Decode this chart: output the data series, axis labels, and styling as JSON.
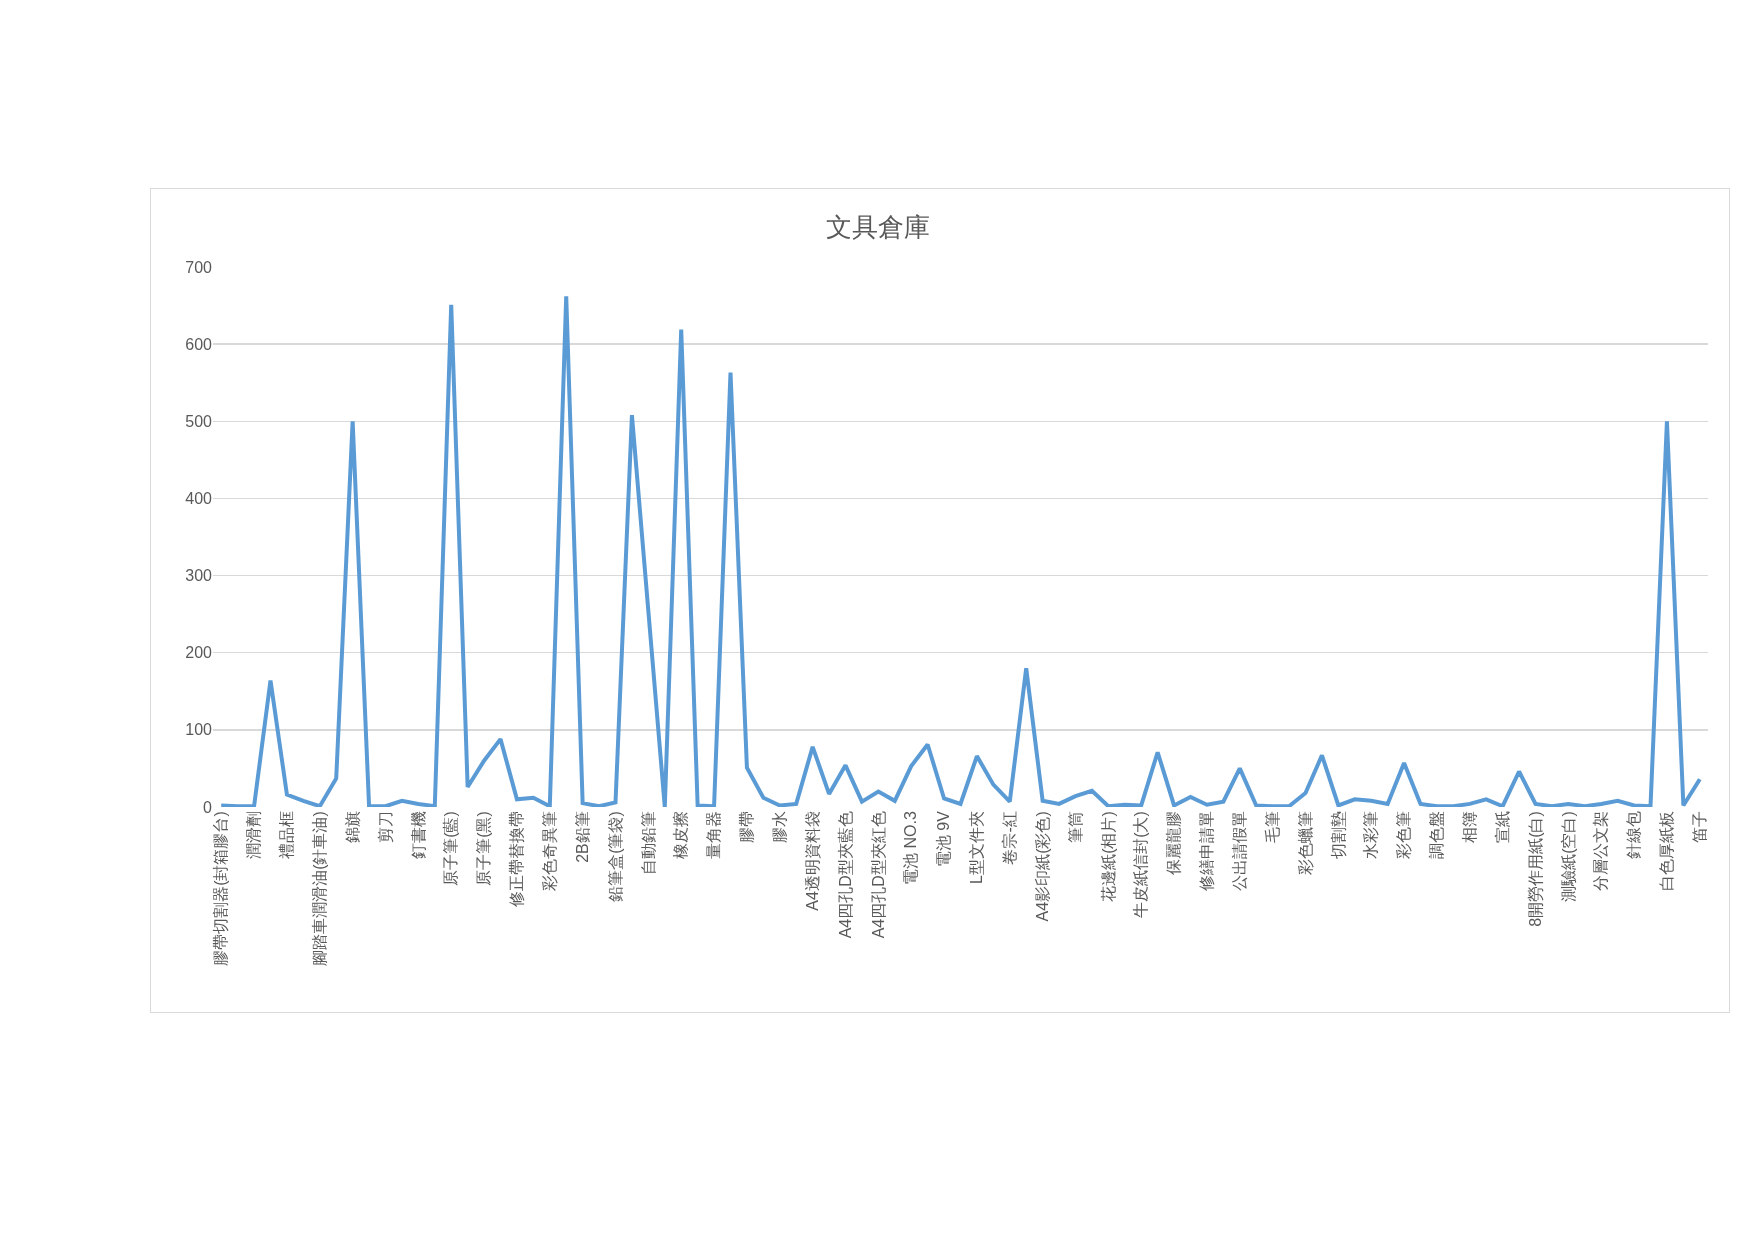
{
  "chart_data": {
    "type": "line",
    "title": "文具倉庫",
    "categories": [
      "膠帶切割器(封箱膠台)",
      null,
      "潤滑劑",
      null,
      "禮品框",
      null,
      "腳踏車潤滑油(針車油)",
      null,
      "錦旗",
      null,
      "剪刀",
      null,
      "釘書機",
      null,
      "原子筆(藍)",
      null,
      "原子筆(黑)",
      null,
      "修正帶替換帶",
      null,
      "彩色奇異筆",
      null,
      "2B鉛筆",
      null,
      "鉛筆盒(筆袋)",
      null,
      "自動鉛筆",
      null,
      "橡皮擦",
      null,
      "量角器",
      null,
      "膠帶",
      null,
      "膠水",
      null,
      "A4透明資料袋",
      null,
      "A4四孔D型夾藍色",
      null,
      "A4四孔D型夾紅色",
      null,
      "電池 NO.3",
      null,
      "電池 9V",
      null,
      "L型文件夾",
      null,
      "卷宗-紅",
      null,
      "A4影印紙(彩色)",
      null,
      "筆筒",
      null,
      "花邊紙(相片)",
      null,
      "牛皮紙信封(大)",
      null,
      "保麗龍膠",
      null,
      "修繕申請單",
      null,
      "公出請假單",
      null,
      "毛筆",
      null,
      "彩色蠟筆",
      null,
      "切割墊",
      null,
      "水彩筆",
      null,
      "彩色筆",
      null,
      "調色盤",
      null,
      "相簿",
      null,
      "宣紙",
      null,
      "8開勞作用紙(白)",
      null,
      "測驗紙(空白)",
      null,
      "分層公文架",
      null,
      "針線包",
      null,
      "白色厚紙板",
      null,
      "笛子"
    ],
    "values": [
      2,
      1,
      1,
      164,
      16,
      8,
      1,
      37,
      500,
      1,
      1,
      8,
      4,
      1,
      651,
      26,
      60,
      88,
      10,
      12,
      1,
      662,
      5,
      1,
      6,
      508,
      254,
      0,
      619,
      2,
      1,
      563,
      51,
      12,
      2,
      4,
      78,
      17,
      54,
      7,
      20,
      8,
      53,
      81,
      11,
      4,
      66,
      29,
      7,
      180,
      8,
      4,
      14,
      21,
      1,
      3,
      2,
      71,
      2,
      13,
      3,
      7,
      50,
      2,
      1,
      1,
      18,
      67,
      2,
      10,
      8,
      4,
      57,
      4,
      1,
      1,
      4,
      10,
      1,
      46,
      4,
      1,
      4,
      1,
      4,
      8,
      2,
      1,
      500,
      2,
      36
    ],
    "color": "#5b9bd5",
    "ylim": [
      0,
      700
    ],
    "yticks": [
      0,
      100,
      200,
      300,
      400,
      500,
      600,
      700
    ],
    "grid": "y"
  }
}
